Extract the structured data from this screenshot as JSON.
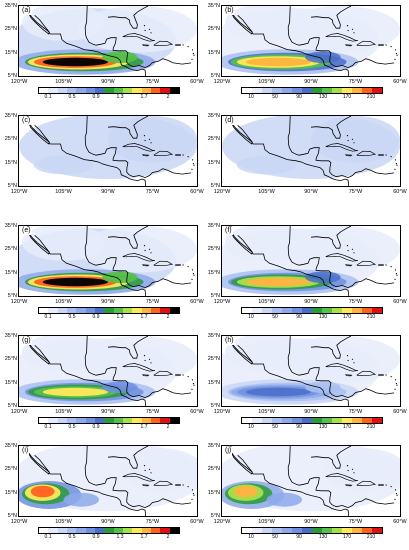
{
  "colors": {
    "rain": [
      "#ffffff",
      "#e6ecfa",
      "#c9d6f5",
      "#a9bff0",
      "#8ea9ea",
      "#6f8fe0",
      "#4a6ec8",
      "#2a9a3a",
      "#55c04a",
      "#a8e04a",
      "#ffe85a",
      "#ffb340",
      "#ff6020",
      "#e01010",
      "#000000"
    ],
    "coast": "#000000"
  },
  "x_ticks": [
    "120°W",
    "105°W",
    "90°W",
    "75°W",
    "60°W"
  ],
  "y_ticks": [
    "35°N",
    "25°N",
    "15°N",
    "5°N"
  ],
  "colorbars": {
    "left": [
      "0.1",
      "0.5",
      "0.9",
      "1.3",
      "1.7",
      "2"
    ],
    "right": [
      "10",
      "50",
      "90",
      "130",
      "170",
      "210"
    ]
  },
  "panels": [
    {
      "label": "(a)",
      "scheme": "left",
      "intensity": 1.0,
      "pattern": "band"
    },
    {
      "label": "(b)",
      "scheme": "right",
      "intensity": 0.8,
      "pattern": "band"
    },
    {
      "label": "(c)",
      "scheme": "left",
      "intensity": 0.05,
      "pattern": "faint"
    },
    {
      "label": "(d)",
      "scheme": "right",
      "intensity": 0.05,
      "pattern": "faint"
    },
    {
      "label": "(e)",
      "scheme": "left",
      "intensity": 1.0,
      "pattern": "band"
    },
    {
      "label": "(f)",
      "scheme": "right",
      "intensity": 0.75,
      "pattern": "band"
    },
    {
      "label": "(g)",
      "scheme": "left",
      "intensity": 0.7,
      "pattern": "band"
    },
    {
      "label": "(h)",
      "scheme": "right",
      "intensity": 0.45,
      "pattern": "band"
    },
    {
      "label": "(i)",
      "scheme": "left",
      "intensity": 0.85,
      "pattern": "west"
    },
    {
      "label": "(j)",
      "scheme": "right",
      "intensity": 0.8,
      "pattern": "west"
    }
  ]
}
